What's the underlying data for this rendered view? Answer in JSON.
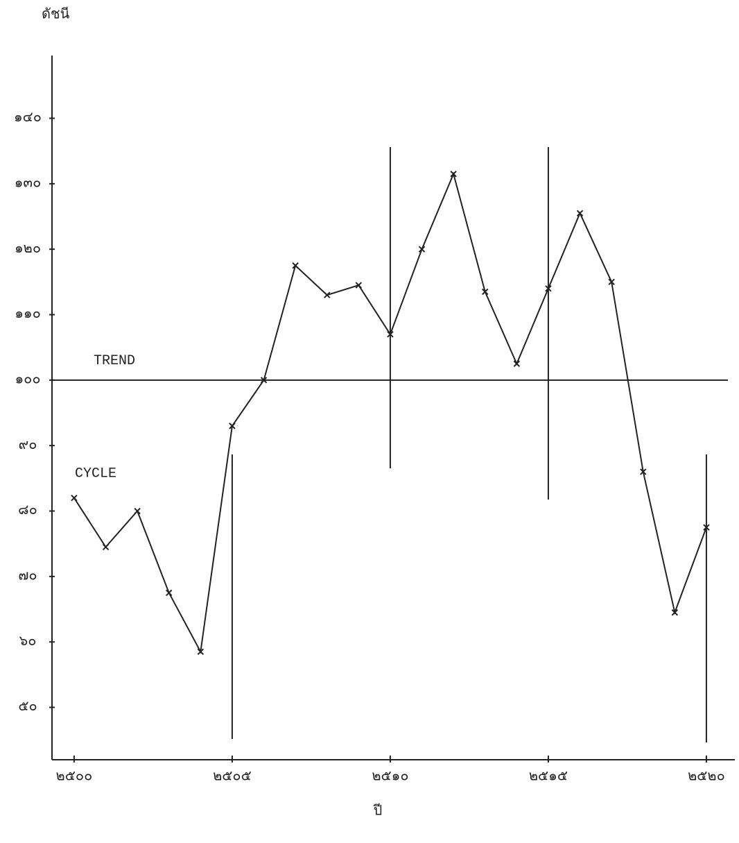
{
  "chart_data": {
    "type": "line",
    "y_label": "ดัชนี",
    "x_label": "ปี",
    "x": [
      2500,
      2501,
      2502,
      2503,
      2504,
      2505,
      2506,
      2507,
      2508,
      2509,
      2510,
      2511,
      2512,
      2513,
      2514,
      2515,
      2516,
      2517,
      2518,
      2519,
      2520
    ],
    "series": [
      {
        "name": "CYCLE",
        "color": "#222222",
        "values": [
          82,
          74.5,
          80,
          67.5,
          58.5,
          93,
          100,
          117.5,
          113,
          114.5,
          107,
          120,
          131.5,
          113.5,
          102.5,
          114,
          125.5,
          115,
          86,
          64.5,
          77.5
        ]
      }
    ],
    "trend": {
      "name": "TREND",
      "value": 100
    },
    "xlim": [
      2499.3,
      2520.9
    ],
    "ylim": [
      42,
      155
    ],
    "xticks": [
      {
        "value": 2500,
        "label": "๒๕๐๐"
      },
      {
        "value": 2505,
        "label": "๒๕๐๕"
      },
      {
        "value": 2510,
        "label": "๒๕๑๐"
      },
      {
        "value": 2515,
        "label": "๒๕๑๕"
      },
      {
        "value": 2520,
        "label": "๒๕๒๐"
      }
    ],
    "yticks": [
      {
        "value": 50,
        "label": "๕๐"
      },
      {
        "value": 60,
        "label": "๖๐"
      },
      {
        "value": 70,
        "label": "๗๐"
      },
      {
        "value": 80,
        "label": "๘๐"
      },
      {
        "value": 90,
        "label": "๙๐"
      },
      {
        "value": 100,
        "label": "๑๐๐"
      },
      {
        "value": 110,
        "label": "๑๑๐"
      },
      {
        "value": 120,
        "label": "๑๒๐"
      },
      {
        "value": 130,
        "label": "๑๓๐"
      },
      {
        "value": 140,
        "label": "๑๔๐"
      }
    ],
    "grid": false
  }
}
